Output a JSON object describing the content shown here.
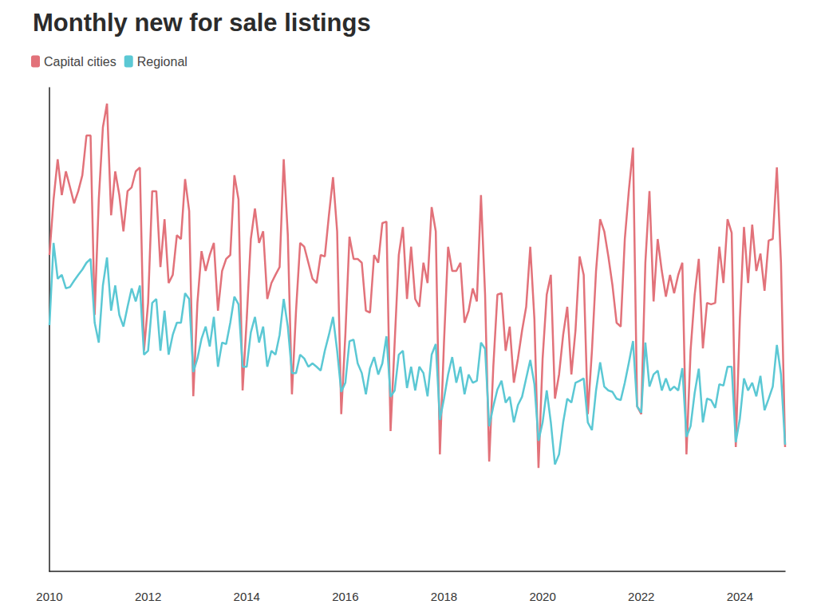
{
  "chart_data": {
    "type": "line",
    "title": "Monthly new for sale listings",
    "categories": [
      "2010",
      null,
      null,
      null,
      null,
      null,
      null,
      null,
      null,
      null,
      null,
      null,
      null,
      null,
      null,
      null,
      null,
      null,
      null,
      null,
      null,
      null,
      null,
      null,
      "2012",
      null,
      null,
      null,
      null,
      null,
      null,
      null,
      null,
      null,
      null,
      null,
      null,
      null,
      null,
      null,
      null,
      null,
      null,
      null,
      null,
      null,
      null,
      null,
      "2014",
      null,
      null,
      null,
      null,
      null,
      null,
      null,
      null,
      null,
      null,
      null,
      null,
      null,
      null,
      null,
      null,
      null,
      null,
      null,
      null,
      null,
      null,
      null,
      "2016",
      null,
      null,
      null,
      null,
      null,
      null,
      null,
      null,
      null,
      null,
      null,
      null,
      null,
      null,
      null,
      null,
      null,
      null,
      null,
      null,
      null,
      null,
      null,
      "2018",
      null,
      null,
      null,
      null,
      null,
      null,
      null,
      null,
      null,
      null,
      null,
      null,
      null,
      null,
      null,
      null,
      null,
      null,
      null,
      null,
      null,
      null,
      null,
      "2020",
      null,
      null,
      null,
      null,
      null,
      null,
      null,
      null,
      null,
      null,
      null,
      null,
      null,
      null,
      null,
      null,
      null,
      null,
      null,
      null,
      null,
      null,
      null,
      "2022",
      null,
      null,
      null,
      null,
      null,
      null,
      null,
      null,
      null,
      null,
      null,
      null,
      null,
      null,
      null,
      null,
      null,
      null,
      null,
      null,
      null,
      null,
      null,
      "2024",
      null,
      null,
      null,
      null,
      null,
      null,
      null,
      null,
      null,
      null,
      null
    ],
    "series": [
      {
        "name": "Capital cities",
        "color": "#e2727a",
        "values": [
          65.4,
          76.9,
          85.2,
          77.8,
          82.7,
          79.4,
          76.1,
          78.6,
          81.9,
          90.1,
          90.1,
          53.0,
          76.9,
          91.8,
          96.7,
          73.6,
          82.7,
          77.8,
          70.3,
          78.6,
          79.4,
          82.7,
          83.5,
          45.6,
          55.5,
          78.6,
          78.6,
          62.9,
          72.8,
          59.6,
          61.3,
          69.5,
          68.7,
          81.1,
          74.5,
          36.2,
          55.5,
          66.2,
          62.1,
          65.4,
          67.9,
          53.9,
          62.1,
          64.6,
          65.4,
          81.9,
          76.9,
          37.4,
          52.2,
          68.7,
          75.0,
          67.9,
          70.3,
          56.3,
          59.6,
          61.3,
          62.9,
          85.2,
          69.5,
          36.6,
          53.9,
          67.9,
          67.1,
          63.8,
          60.5,
          59.6,
          65.4,
          65.1,
          73.6,
          81.5,
          70.3,
          32.5,
          48.9,
          69.2,
          64.6,
          64.6,
          63.8,
          53.9,
          53.5,
          65.4,
          63.8,
          72.0,
          72.3,
          29.0,
          47.3,
          65.4,
          71.2,
          56.3,
          67.1,
          56.3,
          54.7,
          63.8,
          59.6,
          75.3,
          70.3,
          24.2,
          47.3,
          67.1,
          62.1,
          62.1,
          63.8,
          51.4,
          53.9,
          58.5,
          55.8,
          77.8,
          57.2,
          22.7,
          42.3,
          57.2,
          57.5,
          45.6,
          50.6,
          39.0,
          44.0,
          49.8,
          54.7,
          67.1,
          52.2,
          21.4,
          44.0,
          57.2,
          61.3,
          35.7,
          40.7,
          48.9,
          54.7,
          40.7,
          49.8,
          65.1,
          61.3,
          32.5,
          45.6,
          62.1,
          72.8,
          70.3,
          65.1,
          59.1,
          51.4,
          50.6,
          68.7,
          78.9,
          87.6,
          34.1,
          32.5,
          63.8,
          78.6,
          55.8,
          68.7,
          62.1,
          56.8,
          61.3,
          57.5,
          61.3,
          63.8,
          24.2,
          45.6,
          57.2,
          64.6,
          46.1,
          55.5,
          55.2,
          55.5,
          67.1,
          59.6,
          72.8,
          70.0,
          25.7,
          52.2,
          71.2,
          59.6,
          71.7,
          62.1,
          65.7,
          58.0,
          68.4,
          68.7,
          83.5,
          63.8,
          25.7
        ]
      },
      {
        "name": "Regional",
        "color": "#5bc8d4",
        "values": [
          50.9,
          67.9,
          60.5,
          61.3,
          58.5,
          58.8,
          60.1,
          61.3,
          62.4,
          63.8,
          64.6,
          51.4,
          47.3,
          59.1,
          64.9,
          53.9,
          59.1,
          53.0,
          50.6,
          54.7,
          58.5,
          55.8,
          59.1,
          44.8,
          45.6,
          55.5,
          56.3,
          45.6,
          53.9,
          44.8,
          48.9,
          51.4,
          51.4,
          57.5,
          56.3,
          41.2,
          44.0,
          48.1,
          50.6,
          46.5,
          52.6,
          42.3,
          47.3,
          47.0,
          51.4,
          56.8,
          55.2,
          42.3,
          42.3,
          49.4,
          52.6,
          47.3,
          50.6,
          42.3,
          45.6,
          44.8,
          48.9,
          56.3,
          50.6,
          41.0,
          41.0,
          44.8,
          44.0,
          42.3,
          43.0,
          42.3,
          41.5,
          45.6,
          48.9,
          52.6,
          45.6,
          37.1,
          39.0,
          47.6,
          47.9,
          43.0,
          41.0,
          36.6,
          42.0,
          44.3,
          40.7,
          43.0,
          48.6,
          36.1,
          37.4,
          44.8,
          45.6,
          37.9,
          42.3,
          37.4,
          42.3,
          41.0,
          36.2,
          44.8,
          47.0,
          31.3,
          35.7,
          40.7,
          44.3,
          39.0,
          42.3,
          36.6,
          40.7,
          39.0,
          39.4,
          47.3,
          46.0,
          30.0,
          34.1,
          37.6,
          39.4,
          34.9,
          36.1,
          30.8,
          34.4,
          36.1,
          39.9,
          43.7,
          38.7,
          27.0,
          30.8,
          37.4,
          30.8,
          22.1,
          24.2,
          30.8,
          35.7,
          34.9,
          39.0,
          39.4,
          39.9,
          30.8,
          29.2,
          37.4,
          43.2,
          38.2,
          37.4,
          37.1,
          35.7,
          35.4,
          39.0,
          43.2,
          47.6,
          34.1,
          32.8,
          47.3,
          38.2,
          40.7,
          41.5,
          37.4,
          39.9,
          37.4,
          38.2,
          37.4,
          42.0,
          27.8,
          30.0,
          36.9,
          41.9,
          30.8,
          35.7,
          35.4,
          33.8,
          38.7,
          38.4,
          42.3,
          42.3,
          26.7,
          31.6,
          39.9,
          37.4,
          39.0,
          36.2,
          40.4,
          33.3,
          35.7,
          38.2,
          46.8,
          40.7,
          26.2
        ]
      }
    ],
    "ylim": [
      0,
      100
    ],
    "grid": false,
    "legend": "top-left",
    "tick_labels": "x"
  }
}
